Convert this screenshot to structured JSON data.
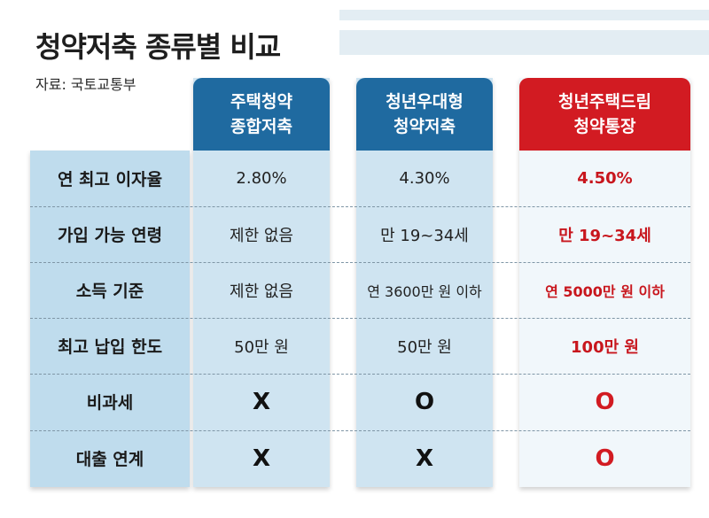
{
  "title": "청약저축 종류별 비교",
  "source": "자료: 국토교통부",
  "columns": [
    {
      "line1": "주택청약",
      "line2": "종합저축"
    },
    {
      "line1": "청년우대형",
      "line2": "청약저축"
    },
    {
      "line1": "청년주택드림",
      "line2": "청약통장"
    }
  ],
  "rows": [
    {
      "label": "연 최고 이자율",
      "values": [
        "2.80%",
        "4.30%",
        "4.50%"
      ]
    },
    {
      "label": "가입 가능 연령",
      "values": [
        "제한 없음",
        "만 19~34세",
        "만 19~34세"
      ]
    },
    {
      "label": "소득 기준",
      "values": [
        "제한 없음",
        "연 3600만 원 이하",
        "연 5000만 원 이하"
      ]
    },
    {
      "label": "최고 납입 한도",
      "values": [
        "50만 원",
        "50만 원",
        "100만 원"
      ]
    },
    {
      "label": "비과세",
      "values": [
        "X",
        "O",
        "O"
      ]
    },
    {
      "label": "대출 연계",
      "values": [
        "X",
        "X",
        "O"
      ]
    }
  ],
  "colors": {
    "header_blue": "#1f6aa0",
    "header_red": "#d21b22",
    "cell_blue": "#cfe4f1",
    "highlight_text": "#c8161d"
  }
}
